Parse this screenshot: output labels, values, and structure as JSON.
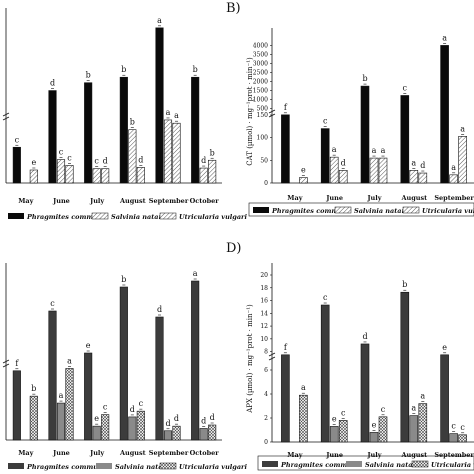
{
  "panel_labels": [
    "B)",
    "D)"
  ],
  "legend": {
    "p_phr": "Phragmites communi",
    "p_salv": "Salvinia natans",
    "p_utr": "Utricularia vulgari",
    "s_phr": "Phragmites communi",
    "s_salv": "Salvinia natans",
    "s_utr": "Utricularia vulgari"
  },
  "colors": {
    "phragmites": "#0a0a0a",
    "salvinia": "#8a8a8a",
    "utricularia": "#ffffff",
    "axis": "#111111"
  },
  "chart_data": [
    {
      "id": "A",
      "type": "bar",
      "title": "",
      "ylabel": "",
      "categories": [
        "May",
        "June",
        "July",
        "August",
        "September",
        "October"
      ],
      "axis_break": true,
      "series": [
        {
          "name": "Phragmites communi",
          "values": [
            0.55,
            1.35,
            1.45,
            1.52,
            2.15,
            1.52
          ],
          "letters": [
            "c",
            "d",
            "b",
            "b",
            "a",
            "b"
          ]
        },
        {
          "name": "Salvinia natans",
          "values": [
            0.0,
            0.36,
            0.22,
            0.82,
            0.97,
            0.23
          ],
          "letters": [
            "",
            "c",
            "c",
            "b",
            "a",
            "d"
          ]
        },
        {
          "name": "Utricularia vulgari",
          "values": [
            0.2,
            0.27,
            0.22,
            0.24,
            0.92,
            0.35
          ],
          "letters": [
            "e",
            "c",
            "d",
            "d",
            "a",
            "b"
          ]
        }
      ]
    },
    {
      "id": "B",
      "type": "bar",
      "title": "",
      "ylabel": "CAT (µmol) · mg⁻¹prot · min⁻¹)",
      "categories": [
        "May",
        "June",
        "July",
        "August",
        "September"
      ],
      "axis_break": true,
      "y_ticks_lower": [
        0,
        50,
        100,
        150
      ],
      "y_ticks_upper": [
        0,
        500,
        1000,
        1500,
        2000,
        2500,
        3000,
        3500,
        4000
      ],
      "series": [
        {
          "name": "Phragmites communi",
          "values": [
            160,
            120,
            1750,
            1230,
            4000
          ],
          "letters": [
            "f",
            "c",
            "b",
            "c",
            "a"
          ]
        },
        {
          "name": "Salvinia natans",
          "values": [
            0,
            57,
            55,
            28,
            18
          ],
          "letters": [
            "",
            "a",
            "a",
            "a",
            "a"
          ]
        },
        {
          "name": "Utricularia vulgari",
          "values": [
            12,
            28,
            55,
            22,
            103
          ],
          "letters": [
            "e",
            "d",
            "a",
            "d",
            "a"
          ]
        }
      ]
    },
    {
      "id": "C",
      "type": "bar",
      "title": "",
      "ylabel": "",
      "categories": [
        "May",
        "June",
        "July",
        "August",
        "September",
        "October"
      ],
      "axis_break": true,
      "series": [
        {
          "name": "Phragmites communi",
          "values": [
            0.6,
            1.55,
            0.85,
            1.95,
            1.45,
            2.05
          ],
          "letters": [
            "f",
            "c",
            "e",
            "b",
            "d",
            "a"
          ]
        },
        {
          "name": "Salvinia natans",
          "values": [
            0.0,
            0.32,
            0.12,
            0.2,
            0.08,
            0.1
          ],
          "letters": [
            "",
            "a",
            "e",
            "d",
            "d",
            "d"
          ]
        },
        {
          "name": "Utricularia vulgari",
          "values": [
            0.38,
            0.62,
            0.22,
            0.25,
            0.12,
            0.13
          ],
          "letters": [
            "b",
            "a",
            "c",
            "c",
            "d",
            "d"
          ]
        }
      ]
    },
    {
      "id": "D",
      "type": "bar",
      "title": "",
      "ylabel": "APX (µmol) · mg⁻¹prot · min⁻¹)",
      "categories": [
        "May",
        "June",
        "July",
        "August",
        "September"
      ],
      "axis_break": true,
      "y_ticks_lower": [
        0,
        2,
        4,
        6
      ],
      "y_ticks_upper": [
        0,
        2,
        4,
        6,
        8,
        10,
        12,
        14,
        16,
        18,
        20
      ],
      "series": [
        {
          "name": "Phragmites communi",
          "values": [
            7.5,
            15.3,
            9.2,
            17.3,
            7.5
          ],
          "letters": [
            "f",
            "c",
            "d",
            "b",
            "e"
          ]
        },
        {
          "name": "Salvinia natans",
          "values": [
            0,
            1.3,
            0.8,
            2.2,
            0.7
          ],
          "letters": [
            "",
            "e",
            "e",
            "a",
            "c"
          ]
        },
        {
          "name": "Utricularia vulgari",
          "values": [
            3.9,
            1.8,
            2.1,
            3.2,
            0.6
          ],
          "letters": [
            "a",
            "c",
            "c",
            "a",
            "c"
          ]
        }
      ]
    }
  ]
}
